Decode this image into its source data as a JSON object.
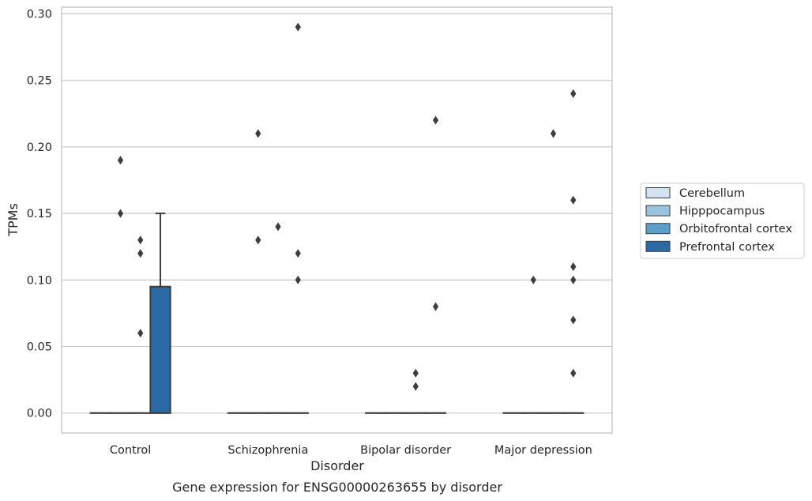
{
  "chart_data": {
    "type": "box",
    "caption": "Gene expression for ENSG00000263655 by disorder",
    "xlabel": "Disorder",
    "ylabel": "TPMs",
    "ylim": [
      -0.015,
      0.305
    ],
    "yticks": [
      "0.00",
      "0.05",
      "0.10",
      "0.15",
      "0.20",
      "0.25",
      "0.30"
    ],
    "ytick_values": [
      0,
      0.05,
      0.1,
      0.15,
      0.2,
      0.25,
      0.3
    ],
    "grid": "horizontal",
    "legend_position": "right",
    "categories": [
      "Control",
      "Schizophrenia",
      "Bipolar disorder",
      "Major depression"
    ],
    "series": [
      {
        "name": "Cerebellum",
        "color": "#d4e3f2",
        "boxes": [
          {
            "category": "Control",
            "q1": 0,
            "median": 0,
            "q3": 0,
            "whisker_low": 0,
            "whisker_high": 0,
            "outliers": []
          },
          {
            "category": "Schizophrenia",
            "q1": 0,
            "median": 0,
            "q3": 0,
            "whisker_low": 0,
            "whisker_high": 0,
            "outliers": []
          },
          {
            "category": "Bipolar disorder",
            "q1": 0,
            "median": 0,
            "q3": 0,
            "whisker_low": 0,
            "whisker_high": 0,
            "outliers": []
          },
          {
            "category": "Major depression",
            "q1": 0,
            "median": 0,
            "q3": 0,
            "whisker_low": 0,
            "whisker_high": 0,
            "outliers": []
          }
        ]
      },
      {
        "name": "Hipppocampus",
        "color": "#9ac3dd",
        "boxes": [
          {
            "category": "Control",
            "q1": 0,
            "median": 0,
            "q3": 0,
            "whisker_low": 0,
            "whisker_high": 0,
            "outliers": [
              0.19,
              0.15
            ]
          },
          {
            "category": "Schizophrenia",
            "q1": 0,
            "median": 0,
            "q3": 0,
            "whisker_low": 0,
            "whisker_high": 0,
            "outliers": [
              0.21,
              0.13
            ]
          },
          {
            "category": "Bipolar disorder",
            "q1": 0,
            "median": 0,
            "q3": 0,
            "whisker_low": 0,
            "whisker_high": 0,
            "outliers": []
          },
          {
            "category": "Major depression",
            "q1": 0,
            "median": 0,
            "q3": 0,
            "whisker_low": 0,
            "whisker_high": 0,
            "outliers": [
              0.1
            ]
          }
        ]
      },
      {
        "name": "Orbitofrontal cortex",
        "color": "#5c9fcb",
        "boxes": [
          {
            "category": "Control",
            "q1": 0,
            "median": 0,
            "q3": 0,
            "whisker_low": 0,
            "whisker_high": 0,
            "outliers": [
              0.13,
              0.12,
              0.06
            ]
          },
          {
            "category": "Schizophrenia",
            "q1": 0,
            "median": 0,
            "q3": 0,
            "whisker_low": 0,
            "whisker_high": 0,
            "outliers": [
              0.14
            ]
          },
          {
            "category": "Bipolar disorder",
            "q1": 0,
            "median": 0,
            "q3": 0,
            "whisker_low": 0,
            "whisker_high": 0,
            "outliers": [
              0.03,
              0.02
            ]
          },
          {
            "category": "Major depression",
            "q1": 0,
            "median": 0,
            "q3": 0,
            "whisker_low": 0,
            "whisker_high": 0,
            "outliers": [
              0.21
            ]
          }
        ]
      },
      {
        "name": "Prefrontal cortex",
        "color": "#2c6aa6",
        "boxes": [
          {
            "category": "Control",
            "q1": 0,
            "median": 0,
            "q3": 0.095,
            "whisker_low": 0,
            "whisker_high": 0.15,
            "outliers": []
          },
          {
            "category": "Schizophrenia",
            "q1": 0,
            "median": 0,
            "q3": 0,
            "whisker_low": 0,
            "whisker_high": 0,
            "outliers": [
              0.29,
              0.12,
              0.1
            ]
          },
          {
            "category": "Bipolar disorder",
            "q1": 0,
            "median": 0,
            "q3": 0,
            "whisker_low": 0,
            "whisker_high": 0,
            "outliers": [
              0.22,
              0.08
            ]
          },
          {
            "category": "Major depression",
            "q1": 0,
            "median": 0,
            "q3": 0,
            "whisker_low": 0,
            "whisker_high": 0,
            "outliers": [
              0.24,
              0.07,
              0.03
            ]
          }
        ]
      }
    ],
    "extra_outliers": [
      {
        "series": "Prefrontal cortex",
        "category": "Major depression",
        "values": [
          0.16,
          0.11,
          0.1
        ]
      }
    ],
    "colors": {
      "grid": "#cccccc",
      "frame": "#cccccc",
      "line": "#3d3d3d",
      "outlier": "#3d3d3d"
    }
  }
}
